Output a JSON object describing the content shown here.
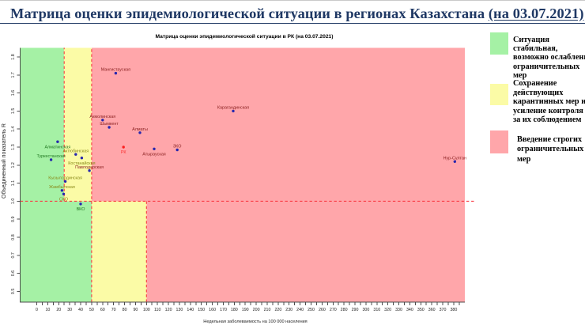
{
  "page": {
    "title_prefix": "Матрица оценки эпидемиологической ситуации в регионах Казахстана ",
    "title_date": "(на 03.07.2021)",
    "title_color": "#1f3864"
  },
  "chart_data": {
    "type": "scatter",
    "title": "Матрица оценки эпидемиологической ситуации в РК (на 03.07.2021)",
    "xlabel": "Недельная заболеваемость на 100 000 населения",
    "ylabel": "Объединенный показатель R",
    "xlim": [
      -15,
      390
    ],
    "ylim": [
      0.441,
      1.851
    ],
    "x_tick_labels": [
      0,
      10,
      20,
      30,
      40,
      50,
      60,
      70,
      80,
      90,
      100,
      110,
      120,
      130,
      140,
      150,
      160,
      170,
      180,
      190,
      200,
      210,
      220,
      230,
      240,
      250,
      260,
      270,
      280,
      290,
      300,
      310,
      320,
      330,
      340,
      350,
      360,
      370,
      380
    ],
    "x_minor_tick_step": 5,
    "x_minor_tick_max": 385,
    "y_tick_labels": [
      0.5,
      0.6,
      0.7,
      0.8,
      0.9,
      1.0,
      1.1,
      1.2,
      1.3,
      1.4,
      1.5,
      1.6,
      1.7,
      1.8
    ],
    "grid": false,
    "colors": {
      "zone_green": "#a5f1a5",
      "zone_yellow": "#fbfba6",
      "zone_red": "#ffa6aa",
      "dashed_line": "#f93b44",
      "point_blue": "#2626ae",
      "point_red": "#fb2020",
      "label_darkred": "#8b2121",
      "label_red": "#fb3030",
      "label_darkgreen": "#217821",
      "label_olive": "#8a8a1a",
      "axis_line": "#4d4d4d",
      "tick_text": "#1a1a1a"
    },
    "zones": [
      {
        "name": "green-upper",
        "x0": -15,
        "x1": 25,
        "y0": 1.0,
        "y1": 1.851,
        "color": "zone_green"
      },
      {
        "name": "yellow-upper",
        "x0": 25,
        "x1": 50,
        "y0": 1.0,
        "y1": 1.851,
        "color": "zone_yellow"
      },
      {
        "name": "red-upper",
        "x0": 50,
        "x1": 390,
        "y0": 1.0,
        "y1": 1.851,
        "color": "zone_red"
      },
      {
        "name": "green-lower",
        "x0": -15,
        "x1": 50,
        "y0": 0.441,
        "y1": 1.0,
        "color": "zone_green"
      },
      {
        "name": "yellow-lower",
        "x0": 50,
        "x1": 100,
        "y0": 0.441,
        "y1": 1.0,
        "color": "zone_yellow"
      },
      {
        "name": "red-lower",
        "x0": 100,
        "x1": 390,
        "y0": 0.441,
        "y1": 1.0,
        "color": "zone_red"
      }
    ],
    "threshold_lines": [
      {
        "name": "r-equals-1",
        "orient": "h",
        "at": 1.0,
        "from": -15,
        "to": 400
      },
      {
        "name": "upper-green-yellow",
        "orient": "v",
        "at": 25,
        "from": 1.0,
        "to": 1.851
      },
      {
        "name": "yellow-red",
        "orient": "v",
        "at": 50,
        "from": 0.441,
        "to": 1.851
      },
      {
        "name": "lower-yellow-red",
        "orient": "v",
        "at": 100,
        "from": 0.441,
        "to": 1.0
      }
    ],
    "points": [
      {
        "name": "Мангистауская",
        "x": 72,
        "y": 1.71,
        "label_pos": "above",
        "label_color": "label_darkred",
        "point_color": "point_blue"
      },
      {
        "name": "Карагандинская",
        "x": 179,
        "y": 1.5,
        "label_pos": "above",
        "label_color": "label_darkred",
        "point_color": "point_blue"
      },
      {
        "name": "Акмолинская",
        "x": 60,
        "y": 1.45,
        "label_pos": "above",
        "label_color": "label_darkred",
        "point_color": "point_blue"
      },
      {
        "name": "Шымкент",
        "x": 66,
        "y": 1.41,
        "label_pos": "above",
        "label_color": "label_darkred",
        "point_color": "point_blue"
      },
      {
        "name": "Алматы",
        "x": 94,
        "y": 1.38,
        "label_pos": "above",
        "label_color": "label_darkred",
        "point_color": "point_blue"
      },
      {
        "name": "РК",
        "x": 79,
        "y": 1.3,
        "label_pos": "below",
        "label_color": "label_red",
        "point_color": "point_red"
      },
      {
        "name": "Атырауская",
        "x": 107,
        "y": 1.29,
        "label_pos": "below",
        "label_color": "label_darkred",
        "point_color": "point_blue"
      },
      {
        "name": "ЗКО",
        "x": 128,
        "y": 1.285,
        "label_pos": "above",
        "label_color": "label_darkred",
        "point_color": "point_blue"
      },
      {
        "name": "Нур-Султан",
        "x": 381,
        "y": 1.22,
        "label_pos": "above",
        "label_color": "label_darkred",
        "point_color": "point_blue"
      },
      {
        "name": "Алматинская",
        "x": 19,
        "y": 1.33,
        "label_pos": "below",
        "label_color": "label_darkgreen",
        "point_color": "point_blue"
      },
      {
        "name": "Актюбинская",
        "x": 35.5,
        "y": 1.26,
        "label_pos": "above",
        "label_color": "label_olive",
        "point_color": "point_blue"
      },
      {
        "name": "Туркестанская",
        "x": 13,
        "y": 1.23,
        "label_pos": "above",
        "label_color": "label_darkgreen",
        "point_color": "point_blue"
      },
      {
        "name": "Костанайская",
        "x": 41,
        "y": 1.24,
        "label_pos": "below",
        "label_color": "label_olive",
        "point_color": "point_blue"
      },
      {
        "name": "Павлодарская",
        "x": 48,
        "y": 1.17,
        "label_pos": "above",
        "label_color": "label_darkred",
        "point_color": "point_blue"
      },
      {
        "name": "Кызылординская",
        "x": 26,
        "y": 1.11,
        "label_pos": "above",
        "label_color": "label_olive",
        "point_color": "point_blue"
      },
      {
        "name": "Жамбылская",
        "x": 23,
        "y": 1.06,
        "label_pos": "above",
        "label_color": "label_olive",
        "point_color": "point_blue"
      },
      {
        "name": "СКО",
        "x": 24.5,
        "y": 1.04,
        "label_pos": "below",
        "label_color": "label_olive",
        "point_color": "point_blue"
      },
      {
        "name": "ВКО",
        "x": 40,
        "y": 0.985,
        "label_pos": "below",
        "label_color": "label_darkgreen",
        "point_color": "point_blue"
      }
    ],
    "legend": [
      {
        "color": "zone_green",
        "box": {
          "x": 620,
          "y": 41,
          "w": 23,
          "h": 28
        },
        "text_x": 649,
        "text_top": 45,
        "line_height": 11.2,
        "lines": [
          "Ситуация",
          "стабильная,",
          "возможно ослабление",
          "ограничительных",
          "мер"
        ]
      },
      {
        "color": "zone_yellow",
        "box": {
          "x": 620,
          "y": 106,
          "w": 23,
          "h": 27
        },
        "text_x": 649,
        "text_top": 100,
        "line_height": 11.6,
        "lines": [
          "Сохранение",
          "действующих",
          "карантинных мер и",
          "усиление контроля",
          "за их соблюдением"
        ]
      },
      {
        "color": "zone_red",
        "box": {
          "x": 620,
          "y": 165,
          "w": 23,
          "h": 29
        },
        "text_x": 654,
        "text_top": 171,
        "line_height": 12.4,
        "lines": [
          "Введение строгих",
          "ограничительных",
          "мер"
        ]
      }
    ]
  }
}
